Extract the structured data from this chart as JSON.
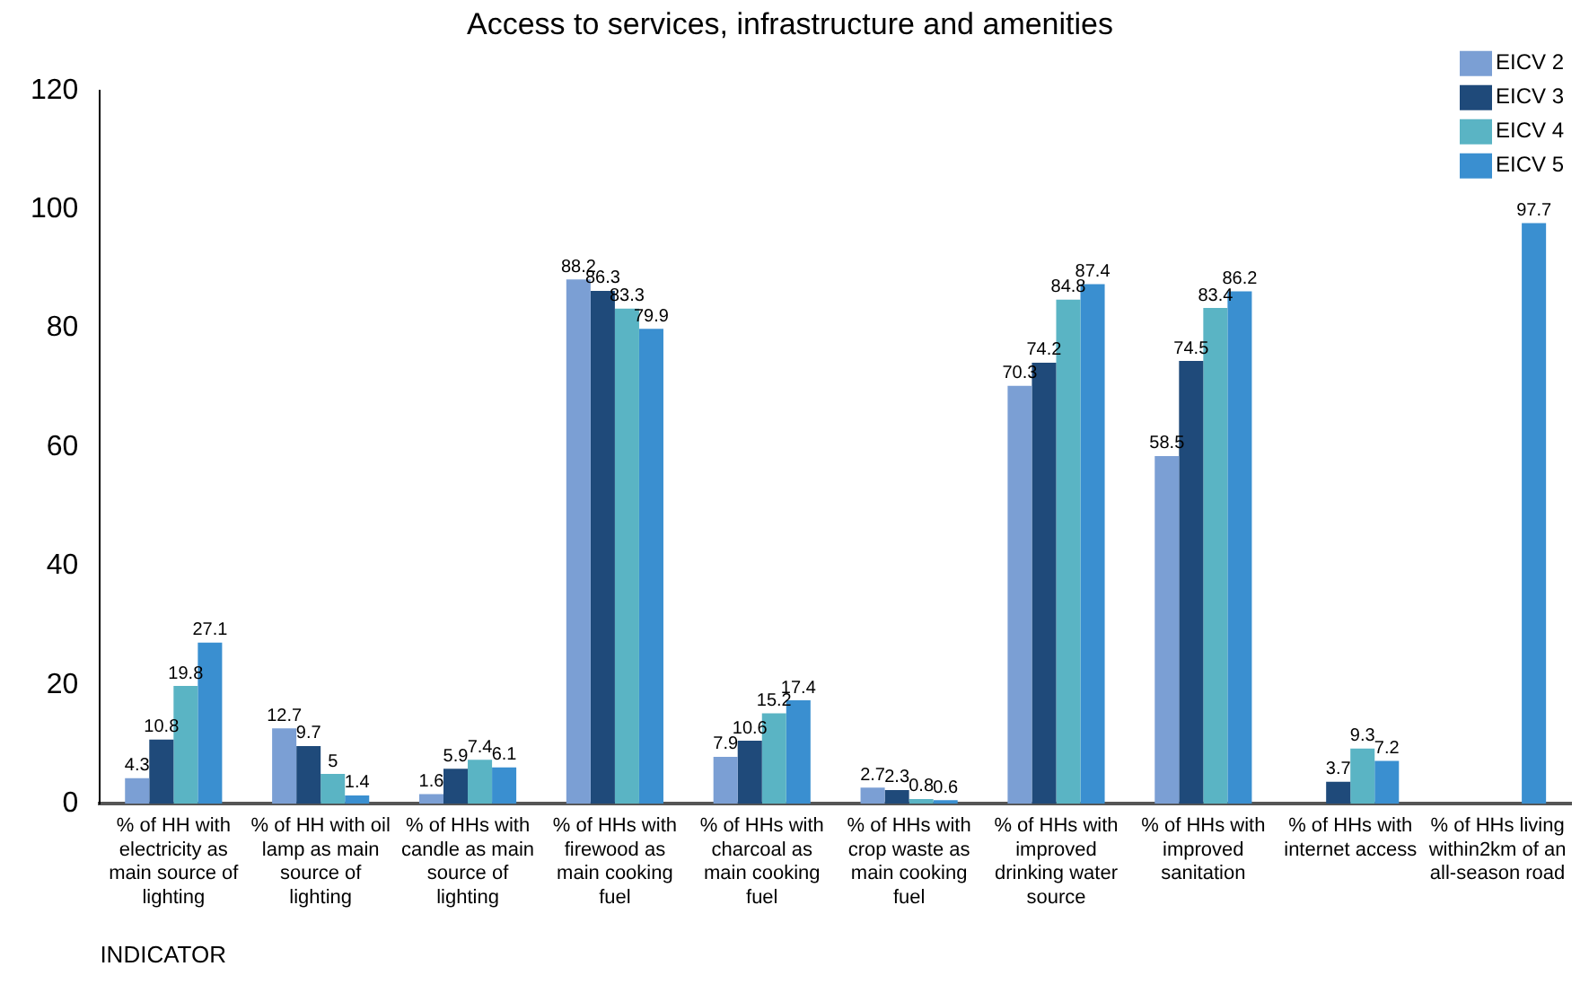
{
  "chart_data": {
    "type": "bar",
    "title": "Access to services, infrastructure and amenities",
    "xlabel": "INDICATOR",
    "categories": [
      "% of HH with electricity as main source of lighting",
      "% of HH with oil lamp as main source of lighting",
      "% of HHs with candle as main source of lighting",
      "% of HHs with firewood as main cooking fuel",
      "% of HHs with charcoal as main cooking fuel",
      "% of HHs with crop waste as main cooking fuel",
      "% of HHs with improved drinking water source",
      "% of HHs with improved sanitation",
      "% of HHs with internet access",
      "% of HHs living within2km of an all-season road"
    ],
    "series": [
      {
        "name": "EICV 2",
        "color": "#7b9fd4",
        "values": [
          4.3,
          12.7,
          1.6,
          88.2,
          7.9,
          2.7,
          70.3,
          58.5,
          null,
          null
        ]
      },
      {
        "name": "EICV 3",
        "color": "#1f4a7a",
        "values": [
          10.8,
          9.7,
          5.9,
          86.3,
          10.6,
          2.3,
          74.2,
          74.5,
          3.7,
          null
        ]
      },
      {
        "name": "EICV 4",
        "color": "#5ab4c4",
        "values": [
          19.8,
          5,
          7.4,
          83.3,
          15.2,
          0.8,
          84.8,
          83.4,
          9.3,
          null
        ]
      },
      {
        "name": "EICV 5",
        "color": "#3a8fd0",
        "values": [
          27.1,
          1.4,
          6.1,
          79.9,
          17.4,
          0.6,
          87.4,
          86.2,
          7.2,
          97.7
        ]
      }
    ],
    "data_labels": true,
    "ylim": [
      0,
      120
    ],
    "yticks": [
      0,
      20,
      40,
      60,
      80,
      100,
      120
    ],
    "grid": false,
    "legend": "top right"
  }
}
